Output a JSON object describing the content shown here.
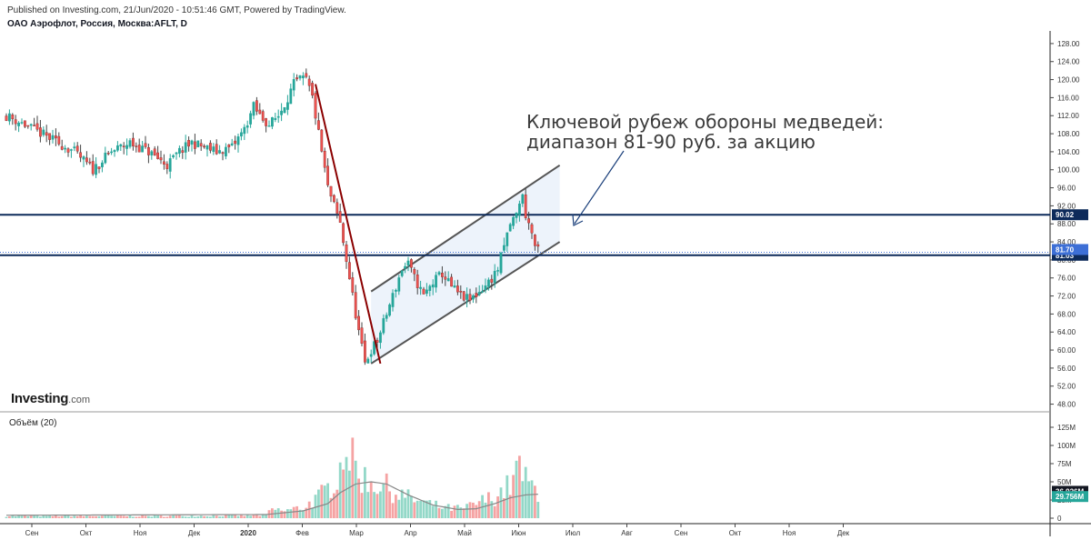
{
  "header": {
    "published": "Published on Investing.com, 21/Jun/2020 - 10:51:46 GMT, Powered by TradingView.",
    "symbol": "ОАО Аэрофлот, Россия, Москва:AFLT, D"
  },
  "branding": {
    "bold": "Investing",
    "suffix": ".com"
  },
  "annotation": {
    "line1": "Ключевой рубеж обороны медведей:",
    "line2": "диапазон 81-90 руб. за акцию"
  },
  "volume_pane": {
    "label": "Объём (20)"
  },
  "colors": {
    "up": "#26a69a",
    "down": "#ef5350",
    "level_line": "#0d2a5a",
    "downtrend": "#8b0000",
    "channel": "#555555",
    "channel_fill": "#e8f0fa"
  },
  "chart_data": {
    "type": "candlestick",
    "title": "ОАО Аэрофлот, Россия, Москва:AFLT, D",
    "price_axis": {
      "ticks": [
        128,
        124,
        120,
        116,
        112,
        108,
        104,
        100,
        96,
        92,
        88,
        84,
        80,
        76,
        72,
        68,
        64,
        60,
        56,
        52,
        48
      ],
      "ylim": [
        46.5,
        130
      ]
    },
    "volume_axis": {
      "ticks": [
        "125M",
        "100M",
        "75M",
        "50M",
        "25M",
        "0"
      ],
      "ylim": [
        0,
        135
      ]
    },
    "x_labels": [
      "Сен",
      "Окт",
      "Ноя",
      "Дек",
      "2020",
      "Фев",
      "Мар",
      "Апр",
      "Май",
      "Июн",
      "Июл",
      "Авг",
      "Сен",
      "Окт",
      "Ноя",
      "Дек"
    ],
    "price_path": [
      [
        0,
        112
      ],
      [
        6,
        110
      ],
      [
        14,
        107
      ],
      [
        22,
        104
      ],
      [
        28,
        100
      ],
      [
        34,
        104
      ],
      [
        40,
        106
      ],
      [
        46,
        104
      ],
      [
        52,
        101
      ],
      [
        56,
        104
      ],
      [
        60,
        106
      ],
      [
        64,
        105
      ],
      [
        68,
        104
      ],
      [
        73,
        105
      ],
      [
        77,
        109
      ],
      [
        80,
        114
      ],
      [
        82,
        112
      ],
      [
        85,
        110
      ],
      [
        88,
        112
      ],
      [
        91,
        116
      ],
      [
        93,
        119
      ],
      [
        95,
        120
      ],
      [
        97,
        120
      ],
      [
        99,
        116
      ],
      [
        102,
        104
      ],
      [
        104,
        96
      ],
      [
        106,
        92
      ],
      [
        108,
        88
      ],
      [
        110,
        80
      ],
      [
        112,
        72
      ],
      [
        114,
        64
      ],
      [
        116,
        57
      ],
      [
        118,
        60
      ],
      [
        120,
        62
      ],
      [
        122,
        66
      ],
      [
        124,
        70
      ],
      [
        126,
        74
      ],
      [
        128,
        78
      ],
      [
        130,
        79
      ],
      [
        132,
        76
      ],
      [
        135,
        72
      ],
      [
        138,
        75
      ],
      [
        141,
        77
      ],
      [
        144,
        74
      ],
      [
        147,
        72
      ],
      [
        150,
        71
      ],
      [
        153,
        73
      ],
      [
        156,
        75
      ],
      [
        159,
        78
      ],
      [
        161,
        83
      ],
      [
        163,
        88
      ],
      [
        165,
        90
      ],
      [
        166,
        93
      ],
      [
        167,
        94
      ],
      [
        168,
        90
      ],
      [
        170,
        86
      ],
      [
        171,
        83
      ],
      [
        172,
        82
      ]
    ],
    "volume_path": [
      [
        0,
        3
      ],
      [
        50,
        3
      ],
      [
        84,
        4
      ],
      [
        86,
        12
      ],
      [
        90,
        10
      ],
      [
        96,
        15
      ],
      [
        100,
        25
      ],
      [
        104,
        40
      ],
      [
        106,
        55
      ],
      [
        108,
        70
      ],
      [
        110,
        115
      ],
      [
        111,
        85
      ],
      [
        114,
        60
      ],
      [
        118,
        50
      ],
      [
        122,
        45
      ],
      [
        126,
        35
      ],
      [
        130,
        28
      ],
      [
        136,
        20
      ],
      [
        142,
        14
      ],
      [
        148,
        13
      ],
      [
        152,
        20
      ],
      [
        158,
        30
      ],
      [
        163,
        45
      ],
      [
        166,
        70
      ],
      [
        168,
        50
      ],
      [
        172,
        38
      ]
    ],
    "volume_ma_path": [
      [
        0,
        4
      ],
      [
        84,
        5
      ],
      [
        96,
        10
      ],
      [
        100,
        15
      ],
      [
        104,
        20
      ],
      [
        108,
        35
      ],
      [
        113,
        47
      ],
      [
        118,
        50
      ],
      [
        123,
        47
      ],
      [
        130,
        32
      ],
      [
        138,
        18
      ],
      [
        146,
        12
      ],
      [
        152,
        13
      ],
      [
        158,
        20
      ],
      [
        163,
        28
      ],
      [
        168,
        32
      ],
      [
        172,
        33
      ]
    ],
    "levels": [
      {
        "label": "90.02",
        "value": 90.02
      },
      {
        "label": "81.03",
        "value": 81.03
      }
    ],
    "last_price": {
      "label": "81.70",
      "value": 81.7
    },
    "volume_badges": [
      {
        "label": "36.926M",
        "value": 36.926
      },
      {
        "label": "29.756M",
        "value": 29.756
      }
    ],
    "channel": {
      "x_from": 118,
      "x_to": 179,
      "upper": [
        73,
        101
      ],
      "lower": [
        57,
        84
      ]
    },
    "downtrend": {
      "from": [
        100,
        119
      ],
      "to": [
        121,
        57
      ]
    }
  }
}
